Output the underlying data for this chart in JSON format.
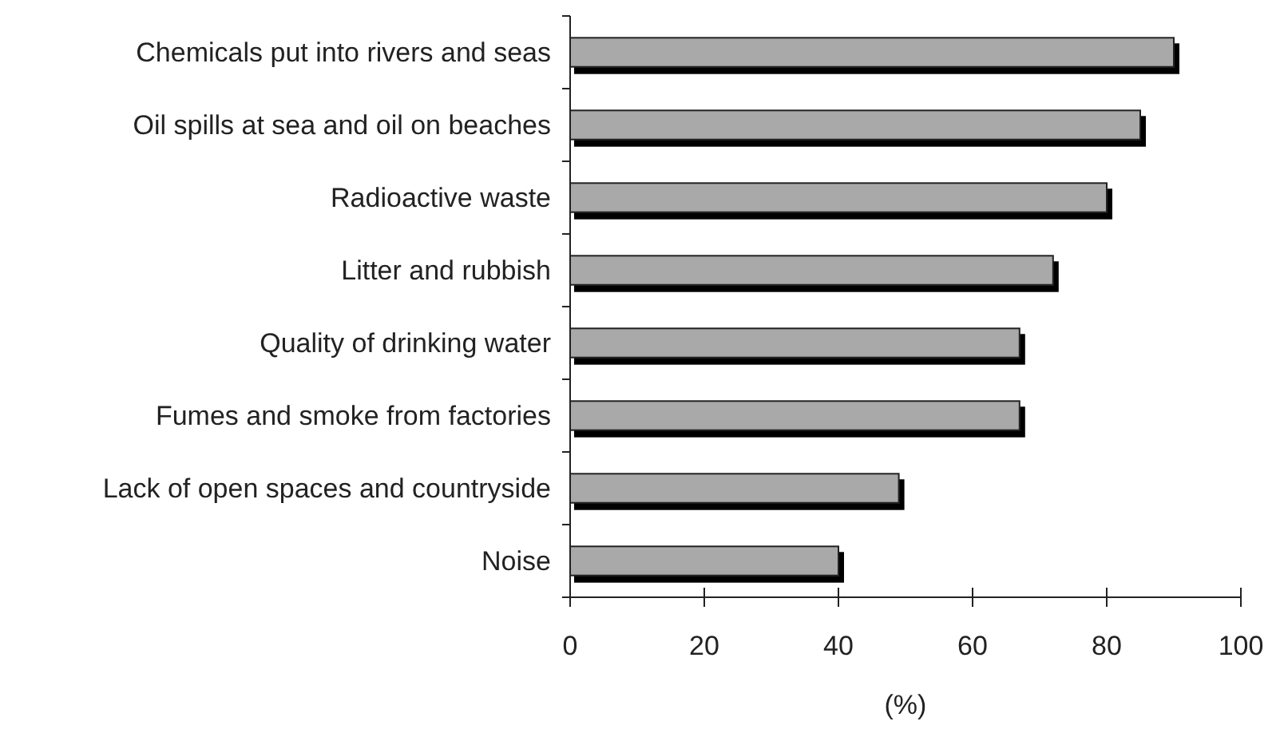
{
  "chart_data": {
    "type": "bar",
    "orientation": "horizontal",
    "xlabel": "(%)",
    "categories": [
      "Chemicals put into rivers and seas",
      "Oil spills at sea and oil on beaches",
      "Radioactive waste",
      "Litter and rubbish",
      "Quality of drinking water",
      "Fumes and smoke from factories",
      "Lack of open spaces and countryside",
      "Noise"
    ],
    "values": [
      90,
      85,
      80,
      72,
      67,
      67,
      49,
      40
    ],
    "color": "#a9a9a9",
    "xlim": [
      0,
      100
    ],
    "xticks": [
      0,
      20,
      40,
      60,
      80,
      100
    ]
  }
}
